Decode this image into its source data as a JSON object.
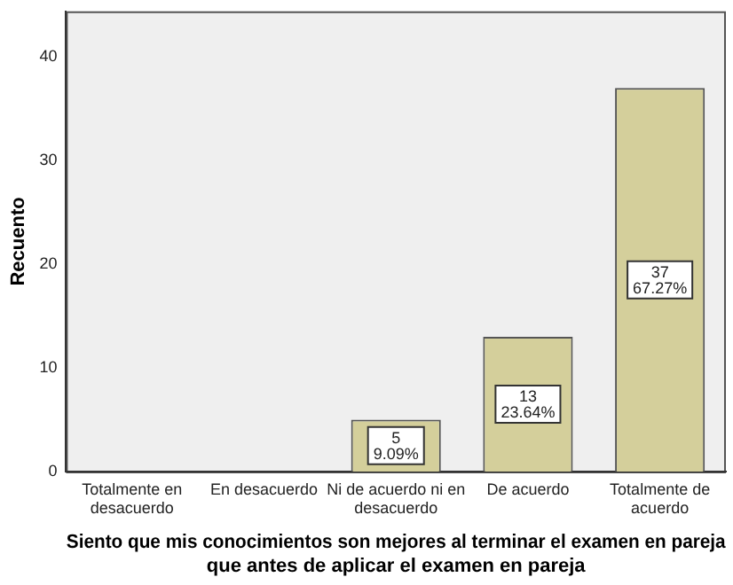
{
  "chart_data": {
    "type": "bar",
    "xlabel": "Siento que mis conocimientos son mejores al terminar el examen en pareja que antes de aplicar el examen en pareja",
    "ylabel": "Recuento",
    "categories": [
      "Totalmente en desacuerdo",
      "En desacuerdo",
      "Ni de acuerdo ni en desacuerdo",
      "De acuerdo",
      "Totalmente de acuerdo"
    ],
    "values": [
      0,
      0,
      5,
      13,
      37
    ],
    "value_labels": [
      null,
      null,
      "5\n9.09%",
      "13\n23.64%",
      "37\n67.27%"
    ],
    "color": "#d4cf9b",
    "ylim": [
      0,
      44.4
    ],
    "yticks": [
      0,
      10,
      20,
      30,
      40
    ],
    "grid": false,
    "legend": false
  }
}
